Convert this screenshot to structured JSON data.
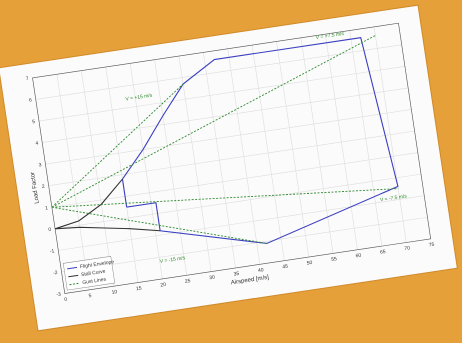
{
  "chart_data": {
    "type": "line",
    "x_label": "Airspeed [m/s]",
    "y_label": "Load Factor",
    "xlim": [
      0,
      75
    ],
    "ylim": [
      -3,
      7
    ],
    "xticks": [
      0,
      5,
      10,
      15,
      20,
      25,
      30,
      35,
      40,
      45,
      50,
      55,
      60,
      65,
      70,
      75
    ],
    "yticks": [
      -3,
      -2,
      -1,
      0,
      1,
      2,
      3,
      4,
      5,
      6,
      7
    ],
    "grid": true,
    "legend": "lower left",
    "annotations": [
      "V = +15 m/s",
      "V = +7.5 m/s",
      "V = -15 m/s",
      "V = -7.5 m/s"
    ],
    "series": [
      {
        "name": "Flight Envelope",
        "color": "#3b3fc0",
        "dash": false,
        "x": [
          15,
          15,
          20,
          25,
          30,
          37,
          67,
          70,
          42,
          21,
          21,
          15
        ],
        "values": [
          0.5,
          1.8,
          3.0,
          4.4,
          5.7,
          6.6,
          6.6,
          -0.4,
          -2.1,
          -0.8,
          0.5,
          0.5
        ]
      },
      {
        "name": "Stall Curve",
        "color": "#333333",
        "dash": false,
        "x": [
          0,
          5,
          10,
          15,
          15,
          0,
          5,
          10,
          15,
          21
        ],
        "values": [
          0,
          0.2,
          0.8,
          1.8,
          null,
          0,
          -0.1,
          -0.3,
          -0.5,
          -0.8
        ]
      },
      {
        "name": "Gust Lines",
        "color": "#2e8b2e",
        "dash": true,
        "x": [
          0,
          30,
          30,
          0,
          70,
          70,
          0,
          70,
          70,
          0,
          42
        ],
        "values": [
          1,
          5.7,
          null,
          1,
          6.6,
          null,
          1,
          -0.5,
          null,
          1,
          -2.1
        ]
      }
    ]
  }
}
